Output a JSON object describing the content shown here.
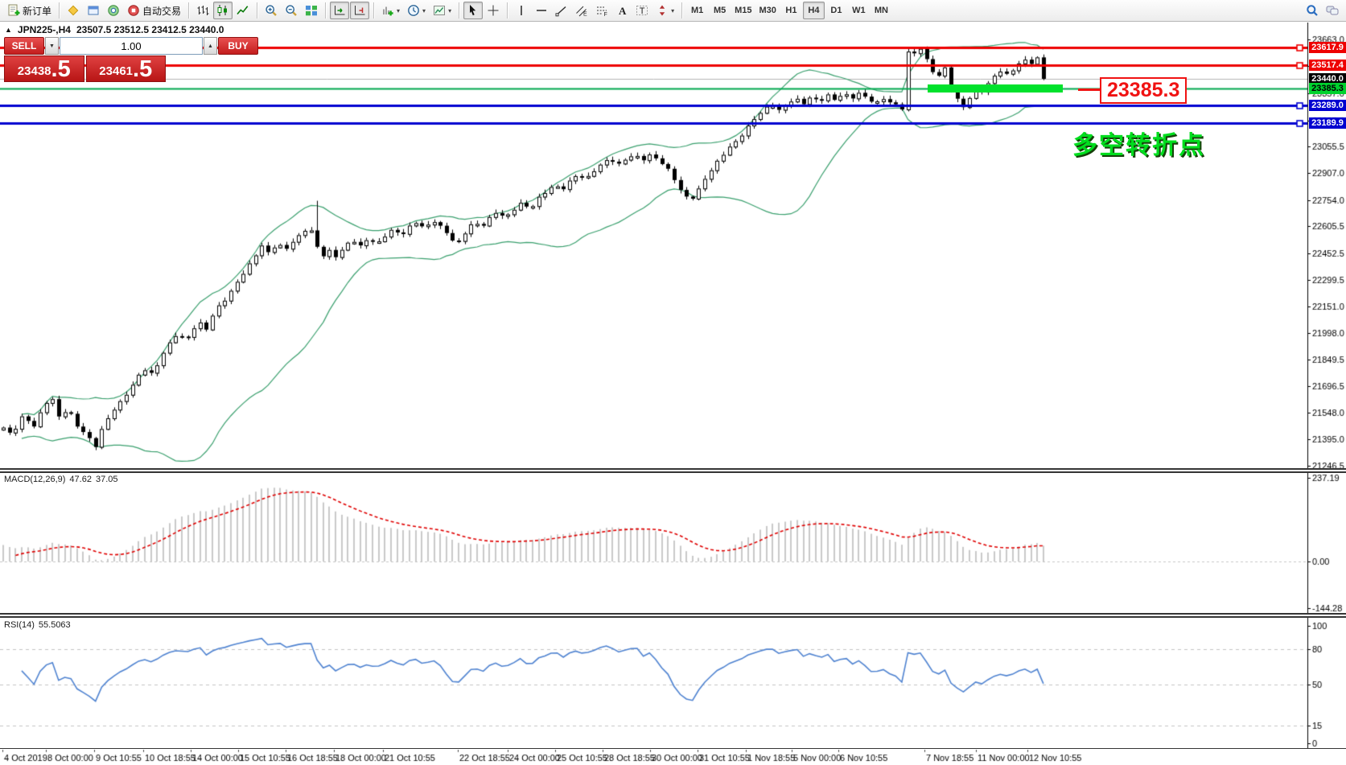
{
  "toolbar": {
    "new_order_label": "新订单",
    "autotrading_label": "自动交易",
    "caret_glyph": "▾",
    "items": [
      {
        "name": "new-order-button",
        "icon": "new-order",
        "label_key": "new_order_label"
      },
      {
        "name": "separator"
      },
      {
        "name": "new-chart-button",
        "icon": "new-chart"
      },
      {
        "name": "profiles-button",
        "icon": "profiles"
      },
      {
        "name": "signals-button",
        "icon": "signals"
      },
      {
        "name": "autotrading-button",
        "icon": "autotrading",
        "label_key": "autotrading_label"
      },
      {
        "name": "separator"
      },
      {
        "name": "bar-chart-button",
        "icon": "bars-chart"
      },
      {
        "name": "candlestick-chart-button",
        "icon": "candle-chart",
        "pressed": true
      },
      {
        "name": "line-chart-button",
        "icon": "line-chart"
      },
      {
        "name": "separator"
      },
      {
        "name": "zoom-in-button",
        "icon": "zoom-in"
      },
      {
        "name": "zoom-out-button",
        "icon": "zoom-out"
      },
      {
        "name": "tile-windows-button",
        "icon": "tile-windows"
      },
      {
        "name": "separator"
      },
      {
        "name": "auto-scroll-button",
        "icon": "auto-scroll",
        "pressed": true
      },
      {
        "name": "chart-shift-button",
        "icon": "chart-shift",
        "pressed": true
      },
      {
        "name": "separator"
      },
      {
        "name": "indicators-button",
        "icon": "indicators",
        "caret": true
      },
      {
        "name": "periods-button",
        "icon": "periods",
        "caret": true
      },
      {
        "name": "templates-button",
        "icon": "templates",
        "caret": true
      },
      {
        "name": "separator"
      },
      {
        "name": "cursor-button",
        "icon": "cursor",
        "pressed": true
      },
      {
        "name": "crosshair-button",
        "icon": "crosshair"
      },
      {
        "name": "separator"
      },
      {
        "name": "vertical-line-button",
        "icon": "vline"
      },
      {
        "name": "horizontal-line-button",
        "icon": "hline"
      },
      {
        "name": "trendline-button",
        "icon": "trendline"
      },
      {
        "name": "equidistant-channel-button",
        "icon": "channel"
      },
      {
        "name": "fibonacci-button",
        "icon": "fibonacci"
      },
      {
        "name": "text-button",
        "icon": "text"
      },
      {
        "name": "text-label-button",
        "icon": "text-label"
      },
      {
        "name": "arrows-button",
        "icon": "arrows",
        "caret": true
      },
      {
        "name": "separator"
      }
    ],
    "timeframes": [
      "M1",
      "M5",
      "M15",
      "M30",
      "H1",
      "H4",
      "D1",
      "W1",
      "MN"
    ],
    "active_timeframe": "H4",
    "right_items": [
      {
        "name": "search-button",
        "icon": "search"
      },
      {
        "name": "chat-button",
        "icon": "chat"
      }
    ]
  },
  "symbol": {
    "collapse_glyph": "▲",
    "name": "JPN225-,H4",
    "ohlc": "23507.5 23512.5 23412.5 23440.0"
  },
  "trade_panel": {
    "sell_label": "SELL",
    "buy_label": "BUY",
    "volume": "1.00",
    "spinner_down_glyph": "▼",
    "spinner_up_glyph": "▲",
    "sell_price_main": "23438",
    "sell_price_big": ".5",
    "buy_price_main": "23461",
    "buy_price_big": ".5"
  },
  "chart_data": {
    "type": "candlestick",
    "symbol": "JPN225-",
    "timeframe": "H4",
    "main": {
      "up_color": "#ffffff",
      "down_color": "#000000",
      "wick_color": "#000000",
      "bollinger": {
        "period": 20,
        "deviation": 2,
        "color": "#3aa06e"
      },
      "axis_ticks": [
        "23663.0",
        "23511.5",
        "23357.0",
        "23205.5",
        "23055.5",
        "22907.0",
        "22754.0",
        "22605.5",
        "22452.5",
        "22299.5",
        "22151.0",
        "21998.0",
        "21849.5",
        "21696.5",
        "21548.0",
        "21395.0",
        "21246.5"
      ],
      "level_lines": [
        {
          "price": 23617.9,
          "label": "23617.9",
          "color": "#ee0000",
          "width": 3,
          "tag_bg": "#ee0000",
          "tag_fg": "#ffffff",
          "marker": true
        },
        {
          "price": 23517.4,
          "label": "23517.4",
          "color": "#ee0000",
          "width": 3,
          "tag_bg": "#ee0000",
          "tag_fg": "#ffffff",
          "marker": true
        },
        {
          "price": 23440.0,
          "label": "23440.0",
          "color": "#b4b4b4",
          "width": 1,
          "tag_bg": "#000000",
          "tag_fg": "#ffffff",
          "marker": false
        },
        {
          "price": 23385.3,
          "label": "23385.3",
          "color": "#00a84e",
          "width": 2,
          "tag_bg": "#00d22e",
          "tag_fg": "#000000",
          "marker": false
        },
        {
          "price": 23289.0,
          "label": "23289.0",
          "color": "#0000d0",
          "width": 3,
          "tag_bg": "#0000d0",
          "tag_fg": "#ffffff",
          "marker": true
        },
        {
          "price": 23189.9,
          "label": "23189.9",
          "color": "#0000d0",
          "width": 3,
          "tag_bg": "#0000d0",
          "tag_fg": "#ffffff",
          "marker": true
        }
      ],
      "highlight_bar": {
        "price": 23385.3,
        "color": "#00e22c"
      },
      "callout": {
        "text": "23385.3",
        "color": "#f01212"
      },
      "annotation": {
        "text": "多空转折点",
        "color": "#00dd1e"
      },
      "special_wicks": [
        {
          "bar": 51,
          "up": 150
        }
      ],
      "price_path": [
        [
          0,
          21480
        ],
        [
          14,
          21420
        ],
        [
          28,
          21530
        ],
        [
          42,
          21470
        ],
        [
          56,
          21600
        ],
        [
          64,
          21640
        ],
        [
          72,
          21520
        ],
        [
          84,
          21570
        ],
        [
          96,
          21470
        ],
        [
          108,
          21420
        ],
        [
          118,
          21350
        ],
        [
          128,
          21470
        ],
        [
          140,
          21560
        ],
        [
          152,
          21620
        ],
        [
          164,
          21700
        ],
        [
          178,
          21800
        ],
        [
          190,
          21760
        ],
        [
          200,
          21870
        ],
        [
          212,
          21950
        ],
        [
          222,
          22010
        ],
        [
          230,
          21940
        ],
        [
          237,
          22010
        ],
        [
          247,
          22060
        ],
        [
          257,
          22020
        ],
        [
          267,
          22130
        ],
        [
          278,
          22180
        ],
        [
          288,
          22240
        ],
        [
          296,
          22300
        ],
        [
          306,
          22360
        ],
        [
          316,
          22430
        ],
        [
          324,
          22500
        ],
        [
          334,
          22450
        ],
        [
          344,
          22510
        ],
        [
          354,
          22470
        ],
        [
          364,
          22520
        ],
        [
          374,
          22560
        ],
        [
          382,
          22600
        ],
        [
          390,
          22560
        ],
        [
          398,
          22420
        ],
        [
          408,
          22470
        ],
        [
          418,
          22430
        ],
        [
          428,
          22490
        ],
        [
          438,
          22530
        ],
        [
          448,
          22490
        ],
        [
          458,
          22540
        ],
        [
          468,
          22500
        ],
        [
          478,
          22550
        ],
        [
          488,
          22590
        ],
        [
          498,
          22550
        ],
        [
          508,
          22600
        ],
        [
          518,
          22630
        ],
        [
          528,
          22590
        ],
        [
          538,
          22640
        ],
        [
          548,
          22600
        ],
        [
          558,
          22550
        ],
        [
          568,
          22500
        ],
        [
          578,
          22570
        ],
        [
          588,
          22630
        ],
        [
          598,
          22600
        ],
        [
          608,
          22650
        ],
        [
          618,
          22690
        ],
        [
          628,
          22650
        ],
        [
          638,
          22700
        ],
        [
          648,
          22740
        ],
        [
          658,
          22700
        ],
        [
          668,
          22760
        ],
        [
          678,
          22800
        ],
        [
          688,
          22840
        ],
        [
          698,
          22810
        ],
        [
          708,
          22860
        ],
        [
          718,
          22900
        ],
        [
          728,
          22870
        ],
        [
          738,
          22920
        ],
        [
          748,
          22960
        ],
        [
          758,
          22990
        ],
        [
          768,
          22950
        ],
        [
          778,
          22990
        ],
        [
          788,
          23010
        ],
        [
          798,
          22980
        ],
        [
          808,
          23010
        ],
        [
          818,
          22980
        ],
        [
          828,
          22940
        ],
        [
          838,
          22870
        ],
        [
          848,
          22790
        ],
        [
          858,
          22750
        ],
        [
          868,
          22810
        ],
        [
          878,
          22890
        ],
        [
          888,
          22950
        ],
        [
          898,
          23010
        ],
        [
          908,
          23060
        ],
        [
          918,
          23100
        ],
        [
          928,
          23160
        ],
        [
          938,
          23220
        ],
        [
          948,
          23260
        ],
        [
          958,
          23300
        ],
        [
          968,
          23260
        ],
        [
          978,
          23300
        ],
        [
          988,
          23330
        ],
        [
          998,
          23300
        ],
        [
          1008,
          23340
        ],
        [
          1018,
          23310
        ],
        [
          1028,
          23350
        ],
        [
          1038,
          23320
        ],
        [
          1048,
          23360
        ],
        [
          1058,
          23330
        ],
        [
          1068,
          23360
        ],
        [
          1078,
          23330
        ],
        [
          1088,
          23300
        ],
        [
          1098,
          23330
        ],
        [
          1108,
          23300
        ],
        [
          1115,
          23290
        ],
        [
          1122,
          23270
        ],
        [
          1126,
          23600
        ],
        [
          1134,
          23570
        ],
        [
          1142,
          23630
        ],
        [
          1150,
          23560
        ],
        [
          1158,
          23490
        ],
        [
          1166,
          23450
        ],
        [
          1174,
          23510
        ],
        [
          1182,
          23390
        ],
        [
          1190,
          23320
        ],
        [
          1198,
          23280
        ],
        [
          1206,
          23340
        ],
        [
          1214,
          23390
        ],
        [
          1222,
          23370
        ],
        [
          1232,
          23440
        ],
        [
          1242,
          23490
        ],
        [
          1252,
          23460
        ],
        [
          1262,
          23510
        ],
        [
          1272,
          23550
        ],
        [
          1282,
          23530
        ],
        [
          1290,
          23560
        ],
        [
          1297,
          23440
        ]
      ]
    },
    "macd": {
      "type": "bar+line",
      "label": "MACD(12,26,9)",
      "value_main": "47.62",
      "value_signal": "37.05",
      "fast": 12,
      "slow": 26,
      "signal": 9,
      "hist_color": "#c9c9c9",
      "signal_color": "#e00000",
      "axis_ticks": [
        "237.19",
        "0.00",
        "-144.28"
      ]
    },
    "rsi": {
      "type": "line",
      "label": "RSI(14)",
      "value": "55.5063",
      "period": 14,
      "color": "#4f83d1",
      "levels": [
        80,
        50,
        15
      ],
      "axis_ticks": [
        "100",
        "80",
        "50",
        "15",
        "0"
      ]
    },
    "date_ticks": [
      [
        3,
        "4 Oct 2019"
      ],
      [
        57,
        "8 Oct 00:00"
      ],
      [
        117,
        "9 Oct 10:55"
      ],
      [
        178,
        "10 Oct 18:55"
      ],
      [
        237,
        "14 Oct 00:00"
      ],
      [
        296,
        "15 Oct 10:55"
      ],
      [
        355,
        "16 Oct 18:55"
      ],
      [
        415,
        "18 Oct 00:00"
      ],
      [
        476,
        "21 Oct 10:55"
      ],
      [
        569,
        "22 Oct 18:55"
      ],
      [
        631,
        "24 Oct 00:00"
      ],
      [
        690,
        "25 Oct 10:55"
      ],
      [
        749,
        "28 Oct 18:55"
      ],
      [
        808,
        "30 Oct 00:00"
      ],
      [
        867,
        "31 Oct 10:55"
      ],
      [
        927,
        "1 Nov 18:55"
      ],
      [
        984,
        "5 Nov 00:00"
      ],
      [
        1042,
        "6 Nov 10:55"
      ],
      [
        1149,
        "7 Nov 18:55"
      ],
      [
        1213,
        "11 Nov 00:00"
      ],
      [
        1277,
        "12 Nov 10:55"
      ]
    ]
  }
}
